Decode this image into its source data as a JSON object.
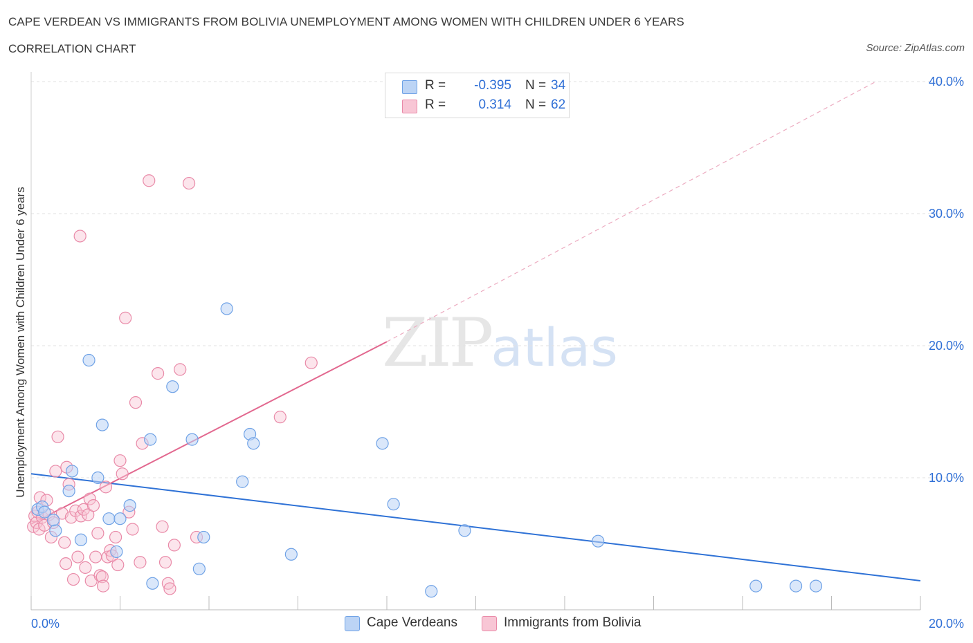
{
  "header": {
    "title": "CAPE VERDEAN VS IMMIGRANTS FROM BOLIVIA UNEMPLOYMENT AMONG WOMEN WITH CHILDREN UNDER 6 YEARS",
    "subtitle": "CORRELATION CHART",
    "source": "Source: ZipAtlas.com"
  },
  "watermark": {
    "zip": "ZIP",
    "atlas": "atlas"
  },
  "legend": {
    "r_label": "R =",
    "n_label": "N =",
    "series": [
      {
        "name": "Cape Verdeans",
        "r": "-0.395",
        "n": "34",
        "color": "#6fa2e6",
        "fill": "#bcd4f5"
      },
      {
        "name": "Immigrants from Bolivia",
        "r": "0.314",
        "n": "62",
        "color": "#e98aa8",
        "fill": "#f8c6d5"
      }
    ]
  },
  "chart_data": {
    "type": "scatter",
    "title": "CAPE VERDEAN VS IMMIGRANTS FROM BOLIVIA UNEMPLOYMENT AMONG WOMEN WITH CHILDREN UNDER 6 YEARS",
    "xlabel": "",
    "ylabel": "Unemployment Among Women with Children Under 6 years",
    "xlim": [
      0,
      20
    ],
    "ylim": [
      0,
      40
    ],
    "x_tick_labels": [
      "0.0%",
      "20.0%"
    ],
    "y_ticks": [
      10,
      20,
      30,
      40
    ],
    "y_tick_labels": [
      "10.0%",
      "20.0%",
      "30.0%",
      "40.0%"
    ],
    "grid": true,
    "series": [
      {
        "name": "Cape Verdeans",
        "color": "#6fa2e6",
        "trend": {
          "x": [
            0,
            20
          ],
          "y": [
            10.3,
            2.2
          ]
        },
        "points": [
          {
            "x": 0.15,
            "y": 7.6
          },
          {
            "x": 0.25,
            "y": 7.8
          },
          {
            "x": 0.3,
            "y": 7.4
          },
          {
            "x": 0.55,
            "y": 6.0
          },
          {
            "x": 0.85,
            "y": 9.0
          },
          {
            "x": 0.92,
            "y": 10.5
          },
          {
            "x": 1.12,
            "y": 5.3
          },
          {
            "x": 1.3,
            "y": 18.9
          },
          {
            "x": 1.5,
            "y": 10.0
          },
          {
            "x": 1.6,
            "y": 14.0
          },
          {
            "x": 1.75,
            "y": 6.9
          },
          {
            "x": 1.92,
            "y": 4.4
          },
          {
            "x": 2.0,
            "y": 6.9
          },
          {
            "x": 2.22,
            "y": 7.9
          },
          {
            "x": 2.68,
            "y": 12.9
          },
          {
            "x": 2.73,
            "y": 2.0
          },
          {
            "x": 3.18,
            "y": 16.9
          },
          {
            "x": 3.62,
            "y": 12.9
          },
          {
            "x": 3.78,
            "y": 3.1
          },
          {
            "x": 3.88,
            "y": 5.5
          },
          {
            "x": 4.4,
            "y": 22.8
          },
          {
            "x": 4.75,
            "y": 9.7
          },
          {
            "x": 4.92,
            "y": 13.3
          },
          {
            "x": 5.0,
            "y": 12.6
          },
          {
            "x": 5.85,
            "y": 4.2
          },
          {
            "x": 7.9,
            "y": 12.6
          },
          {
            "x": 8.15,
            "y": 8.0
          },
          {
            "x": 9.0,
            "y": 1.4
          },
          {
            "x": 9.75,
            "y": 6.0
          },
          {
            "x": 12.75,
            "y": 5.2
          },
          {
            "x": 16.3,
            "y": 1.8
          },
          {
            "x": 17.2,
            "y": 1.8
          },
          {
            "x": 17.65,
            "y": 1.8
          },
          {
            "x": 0.5,
            "y": 6.8
          }
        ]
      },
      {
        "name": "Immigrants from Bolivia",
        "color": "#e98aa8",
        "trend": {
          "x": [
            0,
            8.0
          ],
          "y": [
            6.5,
            20.3
          ],
          "dashed_x": [
            8.0,
            19.0
          ],
          "dashed_y": [
            20.3,
            40.0
          ]
        },
        "points": [
          {
            "x": 0.05,
            "y": 6.3
          },
          {
            "x": 0.08,
            "y": 7.1
          },
          {
            "x": 0.12,
            "y": 6.6
          },
          {
            "x": 0.15,
            "y": 7.4
          },
          {
            "x": 0.18,
            "y": 6.1
          },
          {
            "x": 0.2,
            "y": 8.5
          },
          {
            "x": 0.25,
            "y": 7.0
          },
          {
            "x": 0.3,
            "y": 6.4
          },
          {
            "x": 0.35,
            "y": 8.3
          },
          {
            "x": 0.4,
            "y": 7.2
          },
          {
            "x": 0.45,
            "y": 5.5
          },
          {
            "x": 0.5,
            "y": 6.6
          },
          {
            "x": 0.55,
            "y": 10.5
          },
          {
            "x": 0.6,
            "y": 13.1
          },
          {
            "x": 0.7,
            "y": 7.3
          },
          {
            "x": 0.75,
            "y": 5.1
          },
          {
            "x": 0.78,
            "y": 3.5
          },
          {
            "x": 0.8,
            "y": 10.8
          },
          {
            "x": 0.85,
            "y": 9.5
          },
          {
            "x": 0.9,
            "y": 7.0
          },
          {
            "x": 0.95,
            "y": 2.3
          },
          {
            "x": 1.0,
            "y": 7.5
          },
          {
            "x": 1.05,
            "y": 4.0
          },
          {
            "x": 1.1,
            "y": 28.3
          },
          {
            "x": 1.12,
            "y": 7.1
          },
          {
            "x": 1.18,
            "y": 7.6
          },
          {
            "x": 1.22,
            "y": 3.2
          },
          {
            "x": 1.28,
            "y": 7.2
          },
          {
            "x": 1.32,
            "y": 8.4
          },
          {
            "x": 1.35,
            "y": 2.2
          },
          {
            "x": 1.4,
            "y": 7.9
          },
          {
            "x": 1.45,
            "y": 4.0
          },
          {
            "x": 1.5,
            "y": 5.8
          },
          {
            "x": 1.55,
            "y": 2.6
          },
          {
            "x": 1.6,
            "y": 2.5
          },
          {
            "x": 1.62,
            "y": 1.8
          },
          {
            "x": 1.68,
            "y": 9.3
          },
          {
            "x": 1.72,
            "y": 4.0
          },
          {
            "x": 1.78,
            "y": 4.5
          },
          {
            "x": 1.82,
            "y": 4.1
          },
          {
            "x": 1.9,
            "y": 5.5
          },
          {
            "x": 1.95,
            "y": 3.4
          },
          {
            "x": 2.0,
            "y": 11.3
          },
          {
            "x": 2.05,
            "y": 10.3
          },
          {
            "x": 2.12,
            "y": 22.1
          },
          {
            "x": 2.2,
            "y": 7.4
          },
          {
            "x": 2.28,
            "y": 6.1
          },
          {
            "x": 2.35,
            "y": 15.7
          },
          {
            "x": 2.45,
            "y": 3.6
          },
          {
            "x": 2.5,
            "y": 12.6
          },
          {
            "x": 2.65,
            "y": 32.5
          },
          {
            "x": 2.85,
            "y": 17.9
          },
          {
            "x": 2.95,
            "y": 6.3
          },
          {
            "x": 3.02,
            "y": 3.6
          },
          {
            "x": 3.08,
            "y": 2.0
          },
          {
            "x": 3.12,
            "y": 1.6
          },
          {
            "x": 3.22,
            "y": 4.9
          },
          {
            "x": 3.35,
            "y": 18.2
          },
          {
            "x": 3.55,
            "y": 32.3
          },
          {
            "x": 3.72,
            "y": 5.5
          },
          {
            "x": 5.6,
            "y": 14.6
          },
          {
            "x": 6.3,
            "y": 18.7
          }
        ]
      }
    ]
  }
}
